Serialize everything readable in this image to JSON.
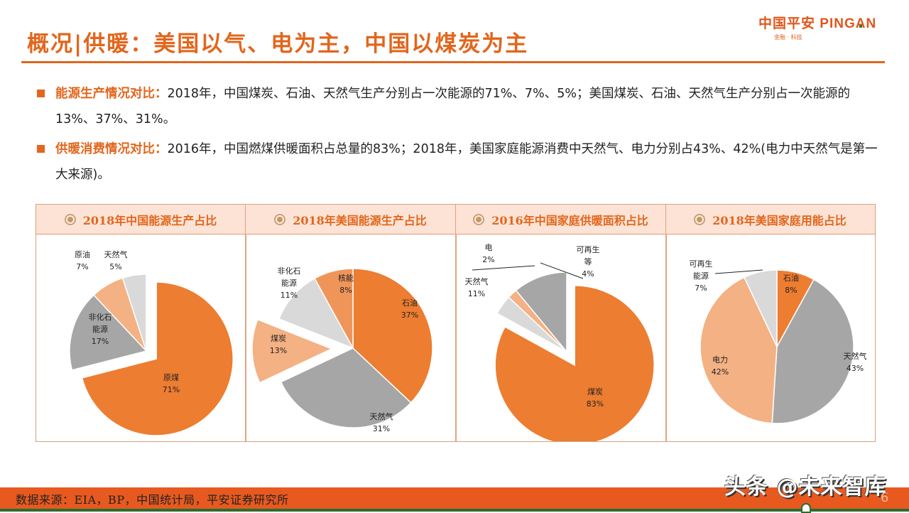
{
  "header": {
    "title": "概况|供暖：美国以气、电为主，中国以煤炭为主",
    "logo_main": "中国平安 PING",
    "logo_an": "AN",
    "logo_sub": "金融 · 科技"
  },
  "bullets": [
    {
      "key": "能源生产情况对比：",
      "text": "2018年，中国煤炭、石油、天然气生产分别占一次能源的71%、7%、5%；美国煤炭、石油、天然气生产分别占一次能源的13%、37%、31%。"
    },
    {
      "key": "供暖消费情况对比：",
      "text": "2016年，中国燃煤供暖面积占总量的83%；2018年，美国家庭能源消费中天然气、电力分别占43%、42%(电力中天然气是第一大来源)。"
    }
  ],
  "colors": {
    "accent": "#E2661C",
    "orange": "#ED7D31",
    "light_orange": "#F4B183",
    "mid_orange": "#F0955A",
    "gray": "#A6A6A6",
    "light_gray": "#D9D9D9",
    "footer": "#E8591F",
    "footer_line": "#2E6B2F"
  },
  "chart_data": [
    {
      "type": "pie",
      "title": "2018年中国能源生产占比",
      "categories": [
        "原煤",
        "非化石能源",
        "原油",
        "天然气"
      ],
      "values": [
        71,
        17,
        7,
        5
      ],
      "labels": [
        "原煤\n71%",
        "非化石\n能源\n17%",
        "原油\n7%",
        "天然气\n5%"
      ],
      "exploded": [
        "原煤"
      ]
    },
    {
      "type": "pie",
      "title": "2018年美国能源生产占比",
      "categories": [
        "石油",
        "天然气",
        "煤炭",
        "非化石能源",
        "核能"
      ],
      "values": [
        37,
        31,
        13,
        11,
        8
      ],
      "labels": [
        "石油\n37%",
        "天然气\n31%",
        "煤炭\n13%",
        "非化石\n能源\n11%",
        "核能\n8%"
      ],
      "exploded": [
        "煤炭"
      ]
    },
    {
      "type": "pie",
      "title": "2016年中国家庭供暖面积占比",
      "categories": [
        "煤炭",
        "天然气",
        "电",
        "可再生等"
      ],
      "values": [
        83,
        11,
        2,
        4
      ],
      "labels": [
        "煤炭\n83%",
        "天然气\n11%",
        "电\n2%",
        "可再生\n等\n4%"
      ],
      "exploded": [
        "煤炭"
      ]
    },
    {
      "type": "pie",
      "title": "2018年美国家庭用能占比",
      "categories": [
        "石油",
        "天然气",
        "电力",
        "可再生能源"
      ],
      "values": [
        8,
        43,
        42,
        7
      ],
      "labels": [
        "石油\n8%",
        "天然气\n43%",
        "电力\n42%",
        "可再生\n能源\n7%"
      ],
      "exploded": []
    }
  ],
  "footer": {
    "source": "数据来源：EIA，BP，中国统计局，平安证券研究所",
    "watermark": "头条 @未来智库",
    "page_number": "6"
  }
}
